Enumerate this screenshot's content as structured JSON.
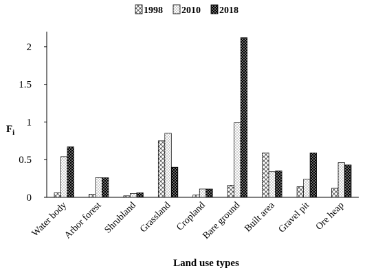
{
  "chart_data": {
    "type": "bar",
    "categories": [
      "Water body",
      "Arbor forest",
      "Shrubland",
      "Grassland",
      "Cropland",
      "Bare ground",
      "Built area",
      "Gravel pit",
      "Ore heap"
    ],
    "series": [
      {
        "name": "1998",
        "pattern": "crosshatch",
        "values": [
          0.06,
          0.04,
          0.02,
          0.75,
          0.03,
          0.16,
          0.59,
          0.14,
          0.12
        ]
      },
      {
        "name": "2010",
        "pattern": "light-dots",
        "values": [
          0.54,
          0.26,
          0.05,
          0.85,
          0.11,
          0.99,
          0.34,
          0.24,
          0.46
        ]
      },
      {
        "name": "2018",
        "pattern": "dark-dots",
        "values": [
          0.67,
          0.26,
          0.06,
          0.4,
          0.11,
          2.12,
          0.35,
          0.59,
          0.43
        ]
      }
    ],
    "y_ticks": [
      "0",
      "0.5",
      "1",
      "1.5",
      "2"
    ],
    "ylim": [
      0,
      2.2
    ],
    "xlabel": "Land use types",
    "ylabel": "F",
    "ylabel_sub": "i",
    "legend_position": "top-center",
    "grid": false
  }
}
